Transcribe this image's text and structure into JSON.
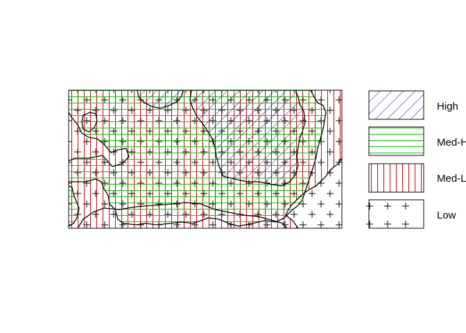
{
  "map": {
    "classes": [
      {
        "key": "high",
        "label": "High",
        "pattern": "diagonal-hatch",
        "color": "#0000cd"
      },
      {
        "key": "med_high",
        "label": "Med-High",
        "pattern": "horizontal-lines",
        "color": "#00cd00"
      },
      {
        "key": "med_low",
        "label": "Med-Low",
        "pattern": "vertical-lines",
        "color": "#cd0000"
      },
      {
        "key": "low",
        "label": "Low",
        "pattern": "plus-marks",
        "color": "#000000"
      }
    ]
  }
}
